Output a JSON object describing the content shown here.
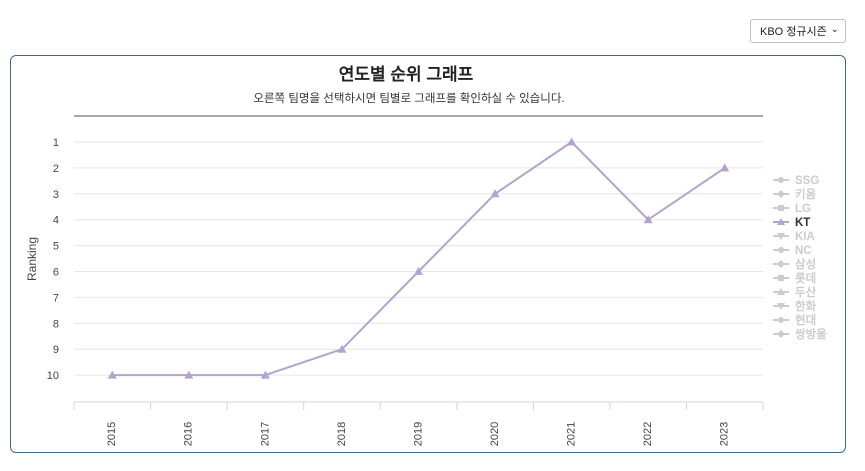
{
  "season_selector": {
    "selected": "KBO 정규시즌",
    "chevron_icon": "chevron-down-icon"
  },
  "chart_data": {
    "type": "line",
    "title": "연도별 순위 그래프",
    "subtitle": "오른쪽 팀명을 선택하시면 팀별로 그래프를 확인하실 수 있습니다.",
    "xlabel": "",
    "ylabel": "Ranking",
    "x": [
      "2015",
      "2016",
      "2017",
      "2018",
      "2019",
      "2020",
      "2021",
      "2022",
      "2023"
    ],
    "yticks": [
      1,
      2,
      3,
      4,
      5,
      6,
      7,
      8,
      9,
      10
    ],
    "ylim": [
      1,
      10
    ],
    "y_inverted": true,
    "grid": true,
    "legend_position": "right",
    "series": [
      {
        "name": "KT",
        "values": [
          10,
          10,
          10,
          9,
          6,
          3,
          1,
          4,
          2
        ],
        "marker": "triangle",
        "color": "#b3a3cf",
        "active": true
      }
    ],
    "legend": [
      {
        "name": "SSG",
        "marker": "circle",
        "active": false
      },
      {
        "name": "키움",
        "marker": "diamond",
        "active": false
      },
      {
        "name": "LG",
        "marker": "square",
        "active": false
      },
      {
        "name": "KT",
        "marker": "triangle",
        "active": true
      },
      {
        "name": "KIA",
        "marker": "triangle-down",
        "active": false
      },
      {
        "name": "NC",
        "marker": "circle",
        "active": false
      },
      {
        "name": "삼성",
        "marker": "diamond",
        "active": false
      },
      {
        "name": "롯데",
        "marker": "square",
        "active": false
      },
      {
        "name": "두산",
        "marker": "triangle",
        "active": false
      },
      {
        "name": "한화",
        "marker": "triangle-down",
        "active": false
      },
      {
        "name": "현대",
        "marker": "circle",
        "active": false
      },
      {
        "name": "쌍방울",
        "marker": "diamond",
        "active": false
      }
    ],
    "colors": {
      "line": "#b3a3cf",
      "inactive": "#cccccc",
      "active_text": "#333333",
      "grid": "#e6e6e6",
      "axis": "#ccd6eb"
    }
  }
}
